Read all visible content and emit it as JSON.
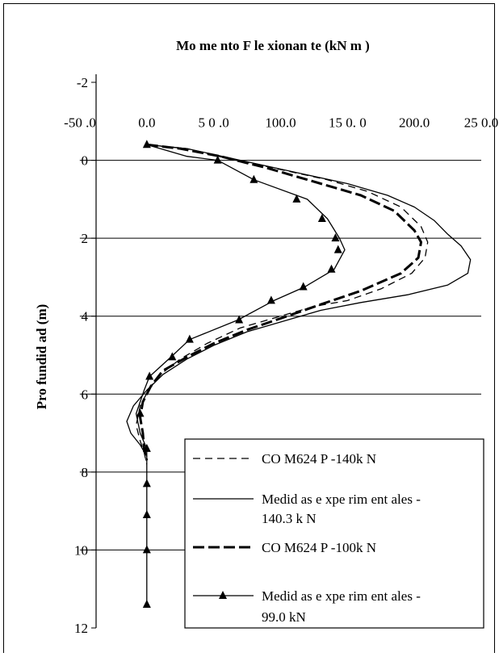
{
  "chart_data": {
    "type": "line",
    "title": "Mo me nto F le xionan te (kN m )",
    "xlabel": "",
    "ylabel": "Pro fundid ad (m)",
    "xlim": [
      -50,
      250
    ],
    "ylim": [
      -2,
      12
    ],
    "y_inverted": true,
    "x_axis_position": "top",
    "grid": "horizontal",
    "x_ticks": [
      -50,
      0,
      50,
      100,
      150,
      200,
      250
    ],
    "x_tick_labels": [
      "-50 .0",
      "0.0",
      "5 0 .0",
      "100.0",
      "15 0. 0",
      "200.0",
      "25 0.0"
    ],
    "y_ticks": [
      -2,
      0,
      2,
      4,
      6,
      8,
      10,
      12
    ],
    "y_tick_labels": [
      "-2",
      "0",
      "2",
      "4",
      "6",
      "8",
      "10",
      "12"
    ],
    "legend_position": "bottom-right",
    "series": [
      {
        "name": "CO M624 P -140k N",
        "style": "long-dash",
        "points": [
          [
            0,
            -0.4
          ],
          [
            30,
            -0.3
          ],
          [
            60,
            -0.05
          ],
          [
            95,
            0.2
          ],
          [
            135,
            0.5
          ],
          [
            165,
            0.8
          ],
          [
            190,
            1.2
          ],
          [
            205,
            1.7
          ],
          [
            210,
            2.1
          ],
          [
            208,
            2.5
          ],
          [
            198,
            2.9
          ],
          [
            175,
            3.3
          ],
          [
            150,
            3.6
          ],
          [
            125,
            3.75
          ],
          [
            100,
            4.0
          ],
          [
            70,
            4.3
          ],
          [
            45,
            4.7
          ],
          [
            25,
            5.1
          ],
          [
            10,
            5.5
          ],
          [
            2,
            5.85
          ],
          [
            -5,
            6.3
          ],
          [
            -8,
            6.8
          ],
          [
            -5,
            7.2
          ],
          [
            -2,
            7.5
          ],
          [
            0,
            7.8
          ]
        ]
      },
      {
        "name": "Medid as e xpe rim ent ales - 140.3 k N",
        "style": "solid-thin",
        "points": [
          [
            0,
            -0.4
          ],
          [
            30,
            -0.3
          ],
          [
            70,
            0
          ],
          [
            110,
            0.3
          ],
          [
            150,
            0.6
          ],
          [
            180,
            0.9
          ],
          [
            200,
            1.2
          ],
          [
            215,
            1.55
          ],
          [
            225,
            1.9
          ],
          [
            235,
            2.2
          ],
          [
            242,
            2.55
          ],
          [
            240,
            2.9
          ],
          [
            225,
            3.2
          ],
          [
            195,
            3.45
          ],
          [
            160,
            3.65
          ],
          [
            130,
            3.85
          ],
          [
            110,
            4.05
          ],
          [
            75,
            4.4
          ],
          [
            50,
            4.75
          ],
          [
            30,
            5.1
          ],
          [
            12,
            5.5
          ],
          [
            0,
            5.9
          ],
          [
            -10,
            6.3
          ],
          [
            -15,
            6.7
          ],
          [
            -12,
            7.0
          ],
          [
            -5,
            7.3
          ],
          [
            0,
            7.6
          ]
        ]
      },
      {
        "name": "CO M624 P -100k N",
        "style": "thick-dash",
        "points": [
          [
            0,
            -0.4
          ],
          [
            25,
            -0.3
          ],
          [
            55,
            -0.1
          ],
          [
            90,
            0.2
          ],
          [
            130,
            0.6
          ],
          [
            160,
            0.9
          ],
          [
            185,
            1.3
          ],
          [
            200,
            1.8
          ],
          [
            205,
            2.1
          ],
          [
            203,
            2.5
          ],
          [
            190,
            2.9
          ],
          [
            160,
            3.35
          ],
          [
            130,
            3.7
          ],
          [
            105,
            4.0
          ],
          [
            75,
            4.35
          ],
          [
            50,
            4.7
          ],
          [
            30,
            5.05
          ],
          [
            12,
            5.4
          ],
          [
            3,
            5.8
          ],
          [
            -3,
            6.2
          ],
          [
            -5,
            6.6
          ],
          [
            -3,
            7.0
          ],
          [
            -2,
            7.4
          ],
          [
            0,
            7.7
          ]
        ]
      },
      {
        "name": "Medid as e xpe rim ent ales - 99.0 kN",
        "style": "solid-triangles",
        "points": [
          [
            0,
            -0.4
          ],
          [
            30,
            -0.1
          ],
          [
            53,
            0
          ],
          [
            80,
            0.5
          ],
          [
            120,
            1.0
          ],
          [
            135,
            1.5
          ],
          [
            144,
            2.0
          ],
          [
            148,
            2.3
          ],
          [
            140,
            2.8
          ],
          [
            118,
            3.25
          ],
          [
            95,
            3.6
          ],
          [
            68,
            4.1
          ],
          [
            32,
            4.6
          ],
          [
            18,
            5.05
          ],
          [
            2,
            5.55
          ],
          [
            -2,
            5.9
          ],
          [
            -8,
            6.5
          ],
          [
            -5,
            7.0
          ],
          [
            0,
            7.4
          ],
          [
            0,
            8.3
          ],
          [
            0,
            9.1
          ],
          [
            0,
            10.0
          ],
          [
            0,
            11.4
          ]
        ],
        "markers": [
          [
            0,
            -0.4
          ],
          [
            53,
            0
          ],
          [
            80,
            0.5
          ],
          [
            112,
            1.0
          ],
          [
            131,
            1.5
          ],
          [
            141,
            2.0
          ],
          [
            143,
            2.3
          ],
          [
            138,
            2.8
          ],
          [
            117,
            3.25
          ],
          [
            93,
            3.6
          ],
          [
            69,
            4.1
          ],
          [
            32,
            4.6
          ],
          [
            19,
            5.05
          ],
          [
            2,
            5.55
          ],
          [
            -5,
            6.5
          ],
          [
            0,
            7.4
          ],
          [
            0,
            8.3
          ],
          [
            0,
            9.1
          ],
          [
            0,
            10.0
          ],
          [
            0,
            11.4
          ]
        ]
      }
    ]
  }
}
